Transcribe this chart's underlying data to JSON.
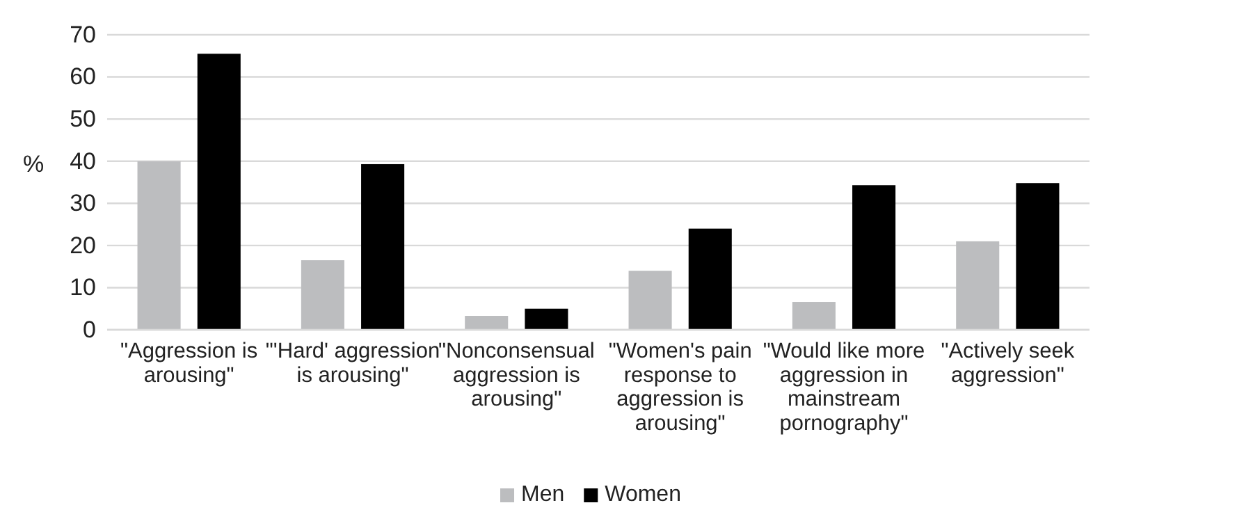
{
  "chart_data": {
    "type": "bar",
    "ylabel": "%",
    "categories": [
      "\"Aggression is arousing\"",
      "\"'Hard' aggression is arousing\"",
      "\"Nonconsensual aggression is arousing\"",
      "\"Women's pain response to aggression is arousing\"",
      "\"Would like more aggression in mainstream pornography\"",
      "\"Actively seek aggression\""
    ],
    "series": [
      {
        "name": "Men",
        "color": "#bcbdbf",
        "values": [
          40,
          16.5,
          3.3,
          14,
          6.6,
          21
        ]
      },
      {
        "name": "Women",
        "color": "#000000",
        "values": [
          65.5,
          39.3,
          5,
          24,
          34.3,
          34.8
        ]
      }
    ],
    "ylim": [
      0,
      70
    ],
    "yticks": [
      0,
      10,
      20,
      30,
      40,
      50,
      60,
      70
    ],
    "grid": "y",
    "legend": "bottom"
  }
}
